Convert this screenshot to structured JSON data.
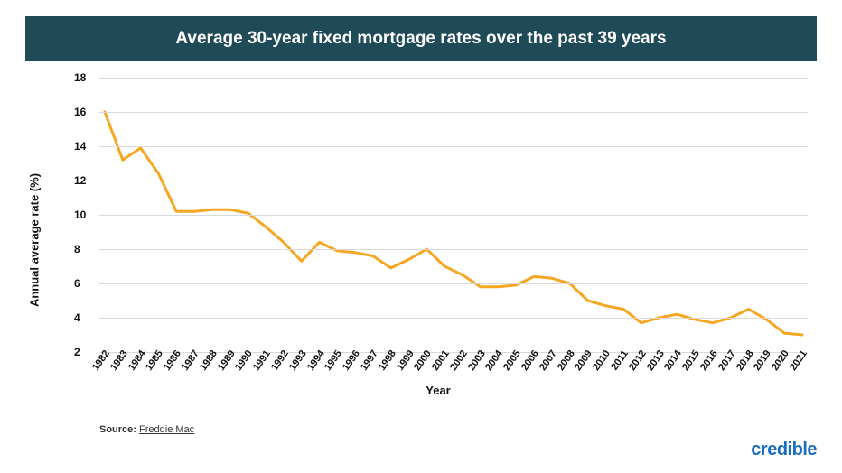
{
  "title": "Average 30-year fixed mortgage rates over the past 39 years",
  "chart": {
    "type": "line",
    "ylabel": "Annual average rate (%)",
    "xlabel": "Year",
    "ylim": [
      2,
      18
    ],
    "ytick_step": 2,
    "yticks": [
      2,
      4,
      6,
      8,
      10,
      12,
      14,
      16,
      18
    ],
    "xticks": [
      1982,
      1983,
      1984,
      1985,
      1986,
      1987,
      1988,
      1989,
      1990,
      1991,
      1992,
      1993,
      1994,
      1995,
      1996,
      1997,
      1998,
      1999,
      2000,
      2001,
      2002,
      2003,
      2004,
      2005,
      2006,
      2007,
      2008,
      2009,
      2010,
      2011,
      2012,
      2013,
      2014,
      2015,
      2016,
      2017,
      2018,
      2019,
      2020,
      2021
    ],
    "years": [
      1982,
      1983,
      1984,
      1985,
      1986,
      1987,
      1988,
      1989,
      1990,
      1991,
      1992,
      1993,
      1994,
      1995,
      1996,
      1997,
      1998,
      1999,
      2000,
      2001,
      2002,
      2003,
      2004,
      2005,
      2006,
      2007,
      2008,
      2009,
      2010,
      2011,
      2012,
      2013,
      2014,
      2015,
      2016,
      2017,
      2018,
      2019,
      2020,
      2021
    ],
    "values": [
      16.0,
      13.2,
      13.9,
      12.4,
      10.2,
      10.2,
      10.3,
      10.3,
      10.1,
      9.3,
      8.4,
      7.3,
      8.4,
      7.9,
      7.8,
      7.6,
      6.9,
      7.4,
      8.0,
      7.0,
      6.5,
      5.8,
      5.8,
      5.9,
      6.4,
      6.3,
      6.0,
      5.0,
      4.7,
      4.5,
      3.7,
      4.0,
      4.2,
      3.9,
      3.7,
      4.0,
      4.5,
      3.9,
      3.1,
      3.0
    ],
    "line_color": "#f5a623",
    "line_width": 3,
    "grid_color": "#d9d9d9",
    "background_color": "#ffffff",
    "title_bg": "#1f4a57",
    "title_color": "#ffffff",
    "title_fontsize": 19,
    "label_fontsize": 13,
    "tick_fontsize": 12
  },
  "source_label": "Source:",
  "source_value": "Freddie Mac",
  "logo": "credible"
}
